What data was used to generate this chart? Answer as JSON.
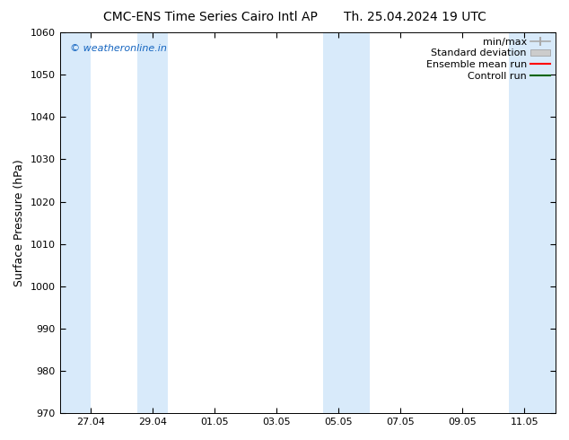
{
  "title_left": "CMC-ENS Time Series Cairo Intl AP",
  "title_right": "Th. 25.04.2024 19 UTC",
  "ylabel": "Surface Pressure (hPa)",
  "ylim": [
    970,
    1060
  ],
  "yticks": [
    970,
    980,
    990,
    1000,
    1010,
    1020,
    1030,
    1040,
    1050,
    1060
  ],
  "xtick_labels": [
    "27.04",
    "29.04",
    "01.05",
    "03.05",
    "05.05",
    "07.05",
    "09.05",
    "11.05"
  ],
  "watermark": "© weatheronline.in",
  "watermark_color": "#1565C0",
  "shaded_color": "#D8EAFA",
  "bg_color": "#ffffff",
  "font_size_title": 10,
  "font_size_ticks": 8,
  "font_size_legend": 8,
  "font_size_ylabel": 9,
  "font_size_watermark": 8
}
